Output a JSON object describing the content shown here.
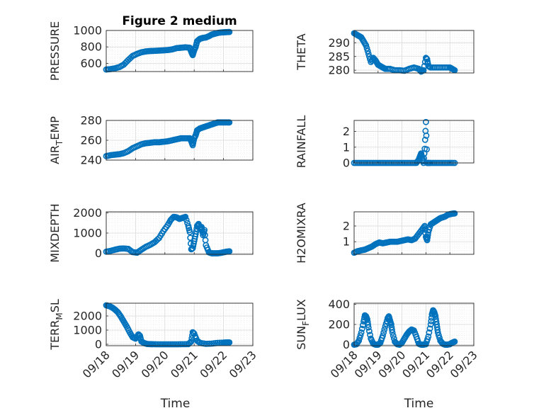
{
  "figure": {
    "title": "Figure 2 medium",
    "xlabel": "Time",
    "marker_color": "#0072BD",
    "grid_color": "#d9d9d9",
    "xticks": [
      "09/18",
      "09/19",
      "09/20",
      "09/21",
      "09/22",
      "09/23"
    ]
  },
  "chart_data": [
    {
      "type": "scatter",
      "ylabel": "PRESSURE",
      "ylim": [
        500,
        1000
      ],
      "yticks": [
        600,
        800,
        1000
      ],
      "xlim": [
        0,
        5
      ],
      "title": "Figure 2 medium",
      "show_xticks": false,
      "grid": true,
      "x": [
        0.0,
        0.15,
        0.3,
        0.45,
        0.6,
        0.75,
        0.9,
        1.05,
        1.2,
        1.35,
        1.5,
        1.65,
        1.8,
        1.95,
        2.1,
        2.25,
        2.4,
        2.55,
        2.7,
        2.85,
        2.9,
        2.95,
        3.0,
        3.05,
        3.1,
        3.2,
        3.3,
        3.4,
        3.5,
        3.6,
        3.7,
        3.8,
        3.9,
        4.0,
        4.1,
        4.2
      ],
      "y": [
        525,
        530,
        540,
        555,
        585,
        640,
        690,
        715,
        735,
        745,
        750,
        752,
        755,
        758,
        762,
        770,
        785,
        790,
        795,
        790,
        740,
        700,
        760,
        800,
        870,
        900,
        910,
        915,
        930,
        950,
        960,
        970,
        975,
        978,
        980,
        982
      ]
    },
    {
      "type": "scatter",
      "ylabel": "THETA",
      "ylim": [
        279,
        294.5
      ],
      "yticks": [
        280,
        285,
        290
      ],
      "xlim": [
        0,
        5
      ],
      "show_xticks": false,
      "grid": true,
      "x": [
        0.0,
        0.1,
        0.2,
        0.3,
        0.4,
        0.5,
        0.6,
        0.7,
        0.8,
        0.9,
        1.0,
        1.1,
        1.2,
        1.3,
        1.5,
        1.7,
        1.9,
        2.1,
        2.3,
        2.5,
        2.7,
        2.8,
        2.9,
        3.0,
        3.05,
        3.1,
        3.2,
        3.4,
        3.6,
        3.8,
        4.0,
        4.1,
        4.2
      ],
      "y": [
        293.5,
        293,
        292.5,
        292,
        290.5,
        289,
        286,
        283,
        284.5,
        283.5,
        282,
        281.5,
        281,
        280.5,
        280.5,
        280,
        280,
        279.8,
        280.5,
        281,
        280.5,
        279.5,
        280,
        284.5,
        284,
        281.5,
        281,
        281,
        281,
        281,
        281,
        280.5,
        280
      ]
    },
    {
      "type": "scatter",
      "ylabel": "AIR_TEMP",
      "ylim": [
        240,
        280
      ],
      "yticks": [
        240,
        260,
        280
      ],
      "xlim": [
        0,
        5
      ],
      "show_xticks": false,
      "grid": true,
      "x": [
        0.0,
        0.15,
        0.3,
        0.45,
        0.6,
        0.75,
        0.9,
        1.05,
        1.2,
        1.35,
        1.5,
        1.65,
        1.8,
        1.95,
        2.1,
        2.25,
        2.4,
        2.55,
        2.7,
        2.85,
        2.9,
        2.95,
        3.0,
        3.05,
        3.1,
        3.2,
        3.3,
        3.4,
        3.5,
        3.6,
        3.7,
        3.8,
        3.9,
        4.0,
        4.1,
        4.2
      ],
      "y": [
        244,
        245,
        245.5,
        246,
        247,
        249,
        252,
        254,
        256,
        257,
        257.5,
        258,
        258,
        258.5,
        259,
        260,
        261,
        262,
        262,
        262,
        259,
        255,
        262,
        265,
        270,
        272,
        273,
        274,
        275,
        276,
        277,
        278,
        278,
        278,
        278,
        278
      ]
    },
    {
      "type": "scatter",
      "ylabel": "RAINFALL",
      "ylim": [
        0,
        2.7
      ],
      "yticks": [
        0,
        1,
        2
      ],
      "xlim": [
        0,
        5
      ],
      "show_xticks": false,
      "grid": true,
      "x": [
        0.0,
        0.2,
        0.4,
        0.6,
        0.8,
        1.0,
        1.2,
        1.4,
        1.6,
        1.8,
        2.0,
        2.2,
        2.4,
        2.6,
        2.7,
        2.75,
        2.8,
        2.85,
        2.9,
        2.95,
        3.0,
        3.05,
        3.1,
        3.2,
        3.4,
        3.6,
        3.8,
        4.0,
        4.2
      ],
      "y": [
        0,
        0,
        0,
        0,
        0,
        0,
        0,
        0,
        0,
        0,
        0,
        0,
        0,
        0,
        0.2,
        0.4,
        0.6,
        0.3,
        0,
        0.9,
        2.6,
        0,
        0,
        0,
        0,
        0,
        0,
        0,
        0
      ]
    },
    {
      "type": "scatter",
      "ylabel": "MIXDEPTH",
      "ylim": [
        -50,
        2050
      ],
      "yticks": [
        0,
        1000,
        2000
      ],
      "xlim": [
        0,
        5
      ],
      "show_xticks": false,
      "grid": true,
      "x": [
        0.0,
        0.15,
        0.3,
        0.45,
        0.6,
        0.75,
        0.9,
        1.05,
        1.2,
        1.35,
        1.5,
        1.65,
        1.8,
        1.95,
        2.1,
        2.2,
        2.3,
        2.4,
        2.5,
        2.6,
        2.7,
        2.8,
        2.85,
        2.9,
        2.95,
        3.0,
        3.05,
        3.1,
        3.15,
        3.2,
        3.25,
        3.3,
        3.35,
        3.4,
        3.5,
        3.6,
        3.7,
        3.8,
        3.9,
        4.0,
        4.1,
        4.2
      ],
      "y": [
        80,
        120,
        180,
        230,
        240,
        220,
        60,
        30,
        180,
        320,
        420,
        550,
        750,
        1100,
        1400,
        1650,
        1800,
        1780,
        1700,
        1750,
        1800,
        1350,
        1050,
        200,
        250,
        600,
        950,
        1350,
        1450,
        1200,
        1300,
        900,
        1150,
        400,
        50,
        0,
        0,
        0,
        20,
        50,
        80,
        100
      ]
    },
    {
      "type": "scatter",
      "ylabel": "H2OMIXRA",
      "ylim": [
        0.2,
        2.9
      ],
      "yticks": [
        1,
        2
      ],
      "xlim": [
        0,
        5
      ],
      "show_xticks": false,
      "grid": true,
      "x": [
        0.0,
        0.15,
        0.3,
        0.45,
        0.6,
        0.75,
        0.9,
        1.05,
        1.2,
        1.35,
        1.5,
        1.65,
        1.8,
        1.95,
        2.1,
        2.25,
        2.4,
        2.55,
        2.7,
        2.85,
        2.95,
        3.0,
        3.05,
        3.1,
        3.2,
        3.3,
        3.4,
        3.5,
        3.6,
        3.7,
        3.8,
        3.9,
        4.0,
        4.1,
        4.2
      ],
      "y": [
        0.3,
        0.4,
        0.45,
        0.5,
        0.6,
        0.7,
        0.85,
        0.95,
        0.9,
        0.95,
        1.0,
        1.0,
        1.0,
        1.05,
        1.1,
        1.15,
        1.1,
        1.2,
        1.5,
        1.8,
        2.0,
        1.3,
        1.1,
        1.6,
        2.1,
        2.2,
        2.3,
        2.4,
        2.5,
        2.55,
        2.6,
        2.7,
        2.75,
        2.78,
        2.8
      ]
    },
    {
      "type": "scatter",
      "ylabel": "TERR_MSL",
      "ylim": [
        -100,
        2900
      ],
      "yticks": [
        0,
        1000,
        2000
      ],
      "xlim": [
        0,
        5
      ],
      "show_xticks": true,
      "grid": true,
      "x": [
        0.0,
        0.1,
        0.2,
        0.3,
        0.4,
        0.5,
        0.6,
        0.7,
        0.8,
        0.9,
        1.0,
        1.1,
        1.15,
        1.2,
        1.3,
        1.4,
        1.5,
        1.6,
        1.8,
        2.0,
        2.2,
        2.4,
        2.6,
        2.8,
        2.9,
        2.95,
        3.0,
        3.1,
        3.2,
        3.4,
        3.6,
        3.8,
        4.0,
        4.1,
        4.2
      ],
      "y": [
        2750,
        2700,
        2600,
        2450,
        2250,
        1950,
        1600,
        1250,
        850,
        500,
        400,
        700,
        600,
        200,
        80,
        20,
        10,
        5,
        0,
        0,
        0,
        0,
        5,
        10,
        200,
        850,
        750,
        250,
        100,
        30,
        50,
        100,
        120,
        130,
        130
      ]
    },
    {
      "type": "scatter",
      "ylabel": "SUN_FLUX",
      "ylim": [
        -10,
        410
      ],
      "yticks": [
        0,
        200,
        400
      ],
      "xlim": [
        0,
        5
      ],
      "show_xticks": true,
      "grid": true,
      "x": [
        0.0,
        0.1,
        0.2,
        0.3,
        0.4,
        0.45,
        0.5,
        0.55,
        0.6,
        0.7,
        0.8,
        0.9,
        1.0,
        1.1,
        1.2,
        1.3,
        1.4,
        1.45,
        1.5,
        1.55,
        1.6,
        1.7,
        1.8,
        1.9,
        2.0,
        2.1,
        2.2,
        2.3,
        2.4,
        2.5,
        2.6,
        2.7,
        2.8,
        2.9,
        3.0,
        3.1,
        3.2,
        3.25,
        3.3,
        3.35,
        3.4,
        3.45,
        3.5,
        3.6,
        3.7,
        3.8,
        3.9,
        4.0,
        4.1,
        4.2
      ],
      "y": [
        0,
        5,
        40,
        120,
        230,
        290,
        280,
        250,
        170,
        60,
        10,
        0,
        0,
        20,
        90,
        180,
        260,
        280,
        240,
        200,
        120,
        30,
        5,
        0,
        20,
        60,
        100,
        130,
        150,
        140,
        80,
        10,
        0,
        0,
        5,
        80,
        200,
        300,
        340,
        320,
        280,
        200,
        120,
        40,
        10,
        0,
        0,
        5,
        20,
        30
      ]
    }
  ]
}
